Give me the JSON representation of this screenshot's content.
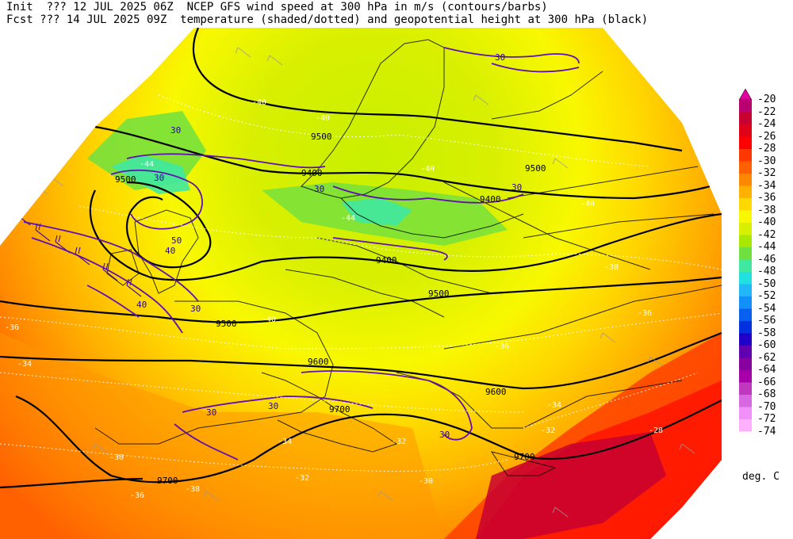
{
  "header": {
    "line1": "Init  ??? 12 JUL 2025 06Z  NCEP GFS wind speed at 300 hPa in m/s (contours/barbs)",
    "line2": "Fcst ??? 14 JUL 2025 09Z  temperature (shaded/dotted) and geopotential height at 300 hPa (black)"
  },
  "legend": {
    "levels": [
      "-20",
      "-22",
      "-24",
      "-26",
      "-28",
      "-30",
      "-32",
      "-34",
      "-36",
      "-38",
      "-40",
      "-42",
      "-44",
      "-46",
      "-48",
      "-50",
      "-52",
      "-54",
      "-56",
      "-58",
      "-60",
      "-62",
      "-64",
      "-66",
      "-68",
      "-70",
      "-72",
      "-74"
    ],
    "colors": [
      "#e000a0",
      "#b8006e",
      "#c80030",
      "#e00018",
      "#ff0000",
      "#ff3800",
      "#ff6000",
      "#ff8800",
      "#ffb000",
      "#ffd800",
      "#f8f800",
      "#d8f000",
      "#a8e800",
      "#70e040",
      "#40e8a0",
      "#20e0e0",
      "#20b8f8",
      "#1090f8",
      "#0860f0",
      "#0030e0",
      "#2000c8",
      "#6000b0",
      "#8800a0",
      "#a800a8",
      "#c038c0",
      "#d868e0",
      "#f090f8",
      "#ffb0ff"
    ],
    "units": "deg. C"
  },
  "map_labels": {
    "height_contours": [
      "9500",
      "9500",
      "9500",
      "9400",
      "9400",
      "9400",
      "9500",
      "9500",
      "9600",
      "9600",
      "9700",
      "9700",
      "9700"
    ],
    "wind_contours": [
      "30",
      "30",
      "30",
      "30",
      "40",
      "50",
      "40",
      "30",
      "30",
      "30",
      "30",
      "30"
    ],
    "temperature_labels": [
      "-40",
      "-40",
      "-44",
      "-40",
      "-40",
      "-44",
      "-40",
      "-36",
      "-36",
      "-36",
      "-34",
      "-34",
      "-34",
      "-32",
      "-32",
      "-32",
      "-30",
      "-30",
      "-28",
      "-38",
      "-38",
      "-36"
    ]
  }
}
